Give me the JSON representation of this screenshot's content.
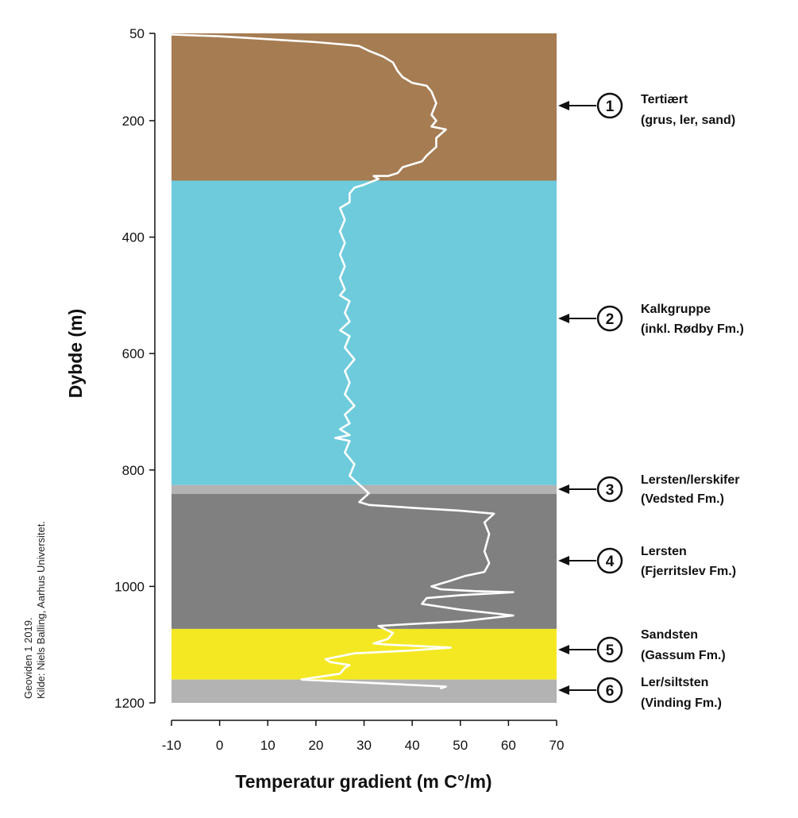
{
  "chart_data": {
    "type": "line",
    "xlabel": "Temperatur gradient (m C°/m)",
    "ylabel": "Dybde (m)",
    "xlim": [
      -10,
      70
    ],
    "ylim": [
      1200,
      50
    ],
    "y_inverted": true,
    "grid": false,
    "x_ticks": [
      -10,
      0,
      10,
      20,
      30,
      40,
      50,
      60,
      70
    ],
    "y_ticks": [
      50,
      200,
      400,
      600,
      800,
      1000,
      1200
    ],
    "layers": [
      {
        "number": "1",
        "line1": "Tertiært",
        "line2": "(grus, ler, sand)",
        "top": 50,
        "bottom": 303,
        "color": "#a67c52"
      },
      {
        "number": "2",
        "line1": "Kalkgruppe",
        "line2": "(inkl. Rødby Fm.)",
        "top": 303,
        "bottom": 826,
        "color": "#6dcbdc"
      },
      {
        "number": "3",
        "line1": "Lersten/lerskifer",
        "line2": "(Vedsted Fm.)",
        "top": 826,
        "bottom": 841,
        "color": "#b3b3b3"
      },
      {
        "number": "4",
        "line1": "Lersten",
        "line2": "(Fjerritslev Fm.)",
        "top": 841,
        "bottom": 1073,
        "color": "#808080"
      },
      {
        "number": "5",
        "line1": "Sandsten",
        "line2": "(Gassum Fm.)",
        "top": 1073,
        "bottom": 1160,
        "color": "#f4e823"
      },
      {
        "number": "6",
        "line1": "Ler/siltsten",
        "line2": "(Vinding Fm.)",
        "top": 1160,
        "bottom": 1200,
        "color": "#b3b3b3"
      }
    ],
    "series": [
      {
        "color": "#ffffff",
        "points": [
          [
            -10,
            52
          ],
          [
            0,
            55
          ],
          [
            10,
            60
          ],
          [
            20,
            65
          ],
          [
            27,
            70
          ],
          [
            29,
            72
          ],
          [
            31,
            80
          ],
          [
            34,
            90
          ],
          [
            36,
            100
          ],
          [
            37,
            115
          ],
          [
            38,
            125
          ],
          [
            40,
            135
          ],
          [
            43,
            140
          ],
          [
            44,
            150
          ],
          [
            45,
            170
          ],
          [
            44,
            190
          ],
          [
            45,
            200
          ],
          [
            44,
            210
          ],
          [
            47,
            215
          ],
          [
            45,
            230
          ],
          [
            45,
            245
          ],
          [
            43,
            260
          ],
          [
            42,
            270
          ],
          [
            40,
            275
          ],
          [
            38,
            280
          ],
          [
            37,
            290
          ],
          [
            35,
            295
          ],
          [
            32,
            295
          ],
          [
            33,
            300
          ],
          [
            30,
            310
          ],
          [
            28,
            315
          ],
          [
            27,
            325
          ],
          [
            27,
            340
          ],
          [
            25,
            350
          ],
          [
            26,
            370
          ],
          [
            25,
            390
          ],
          [
            26,
            410
          ],
          [
            25,
            430
          ],
          [
            26,
            450
          ],
          [
            25,
            470
          ],
          [
            26,
            490
          ],
          [
            25,
            500
          ],
          [
            27,
            510
          ],
          [
            26,
            530
          ],
          [
            27,
            545
          ],
          [
            25,
            560
          ],
          [
            27,
            570
          ],
          [
            26,
            590
          ],
          [
            28,
            610
          ],
          [
            26,
            630
          ],
          [
            27,
            650
          ],
          [
            26,
            670
          ],
          [
            28,
            690
          ],
          [
            26,
            705
          ],
          [
            27,
            720
          ],
          [
            25,
            730
          ],
          [
            27,
            740
          ],
          [
            24,
            745
          ],
          [
            27,
            750
          ],
          [
            26,
            770
          ],
          [
            28,
            790
          ],
          [
            27,
            810
          ],
          [
            29,
            825
          ],
          [
            31,
            840
          ],
          [
            29,
            855
          ],
          [
            31,
            860
          ],
          [
            40,
            865
          ],
          [
            50,
            870
          ],
          [
            57,
            875
          ],
          [
            55,
            890
          ],
          [
            56,
            910
          ],
          [
            55,
            940
          ],
          [
            56,
            960
          ],
          [
            55,
            975
          ],
          [
            51,
            982
          ],
          [
            48,
            990
          ],
          [
            46,
            995
          ],
          [
            44,
            1000
          ],
          [
            46,
            1005
          ],
          [
            53,
            1008
          ],
          [
            61,
            1010
          ],
          [
            50,
            1015
          ],
          [
            43,
            1020
          ],
          [
            42,
            1030
          ],
          [
            50,
            1040
          ],
          [
            61,
            1050
          ],
          [
            50,
            1060
          ],
          [
            39,
            1065
          ],
          [
            33,
            1068
          ],
          [
            36,
            1080
          ],
          [
            35,
            1090
          ],
          [
            32,
            1098
          ],
          [
            35,
            1100
          ],
          [
            48,
            1105
          ],
          [
            40,
            1110
          ],
          [
            28,
            1115
          ],
          [
            22,
            1125
          ],
          [
            23,
            1130
          ],
          [
            27,
            1135
          ],
          [
            26,
            1140
          ],
          [
            25,
            1150
          ],
          [
            17,
            1160
          ],
          [
            47,
            1172
          ],
          [
            46,
            1175
          ]
        ]
      }
    ]
  },
  "credit": {
    "line1": "Geoviden 1 2019.",
    "line2": "Kilde: Niels Balling, Aarhus Universitet."
  }
}
